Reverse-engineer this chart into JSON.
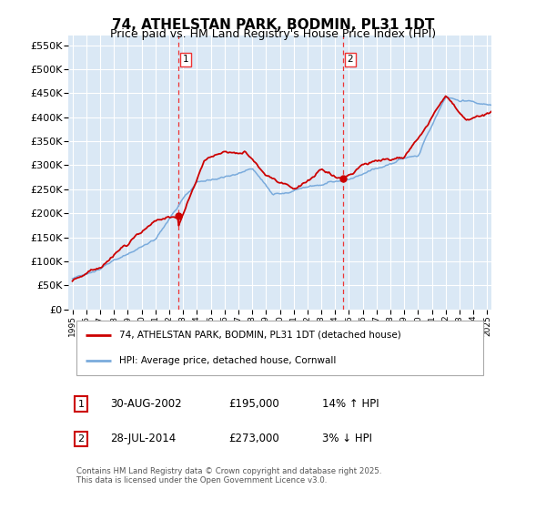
{
  "title": "74, ATHELSTAN PARK, BODMIN, PL31 1DT",
  "subtitle": "Price paid vs. HM Land Registry's House Price Index (HPI)",
  "ylabel_ticks": [
    "£0",
    "£50K",
    "£100K",
    "£150K",
    "£200K",
    "£250K",
    "£300K",
    "£350K",
    "£400K",
    "£450K",
    "£500K",
    "£550K"
  ],
  "ylim": [
    0,
    570000
  ],
  "yticks": [
    0,
    50000,
    100000,
    150000,
    200000,
    250000,
    300000,
    350000,
    400000,
    450000,
    500000,
    550000
  ],
  "sale1_date": "30-AUG-2002",
  "sale1_price": 195000,
  "sale2_date": "28-JUL-2014",
  "sale2_price": 273000,
  "sale1_hpi": "14% ↑ HPI",
  "sale2_hpi": "3% ↓ HPI",
  "legend_line1": "74, ATHELSTAN PARK, BODMIN, PL31 1DT (detached house)",
  "legend_line2": "HPI: Average price, detached house, Cornwall",
  "footer": "Contains HM Land Registry data © Crown copyright and database right 2025.\nThis data is licensed under the Open Government Licence v3.0.",
  "line_color_red": "#cc0000",
  "line_color_blue": "#7aabdc",
  "shade_color": "#dae8f5",
  "background_color": "#dae8f5",
  "grid_color": "#ffffff",
  "vline_color": "#ee3333",
  "title_fontsize": 11,
  "subtitle_fontsize": 9,
  "tick_fontsize": 8,
  "sale1_x_year": 2002.67,
  "sale2_x_year": 2014.58,
  "xlim_left": 1994.7,
  "xlim_right": 2025.3
}
